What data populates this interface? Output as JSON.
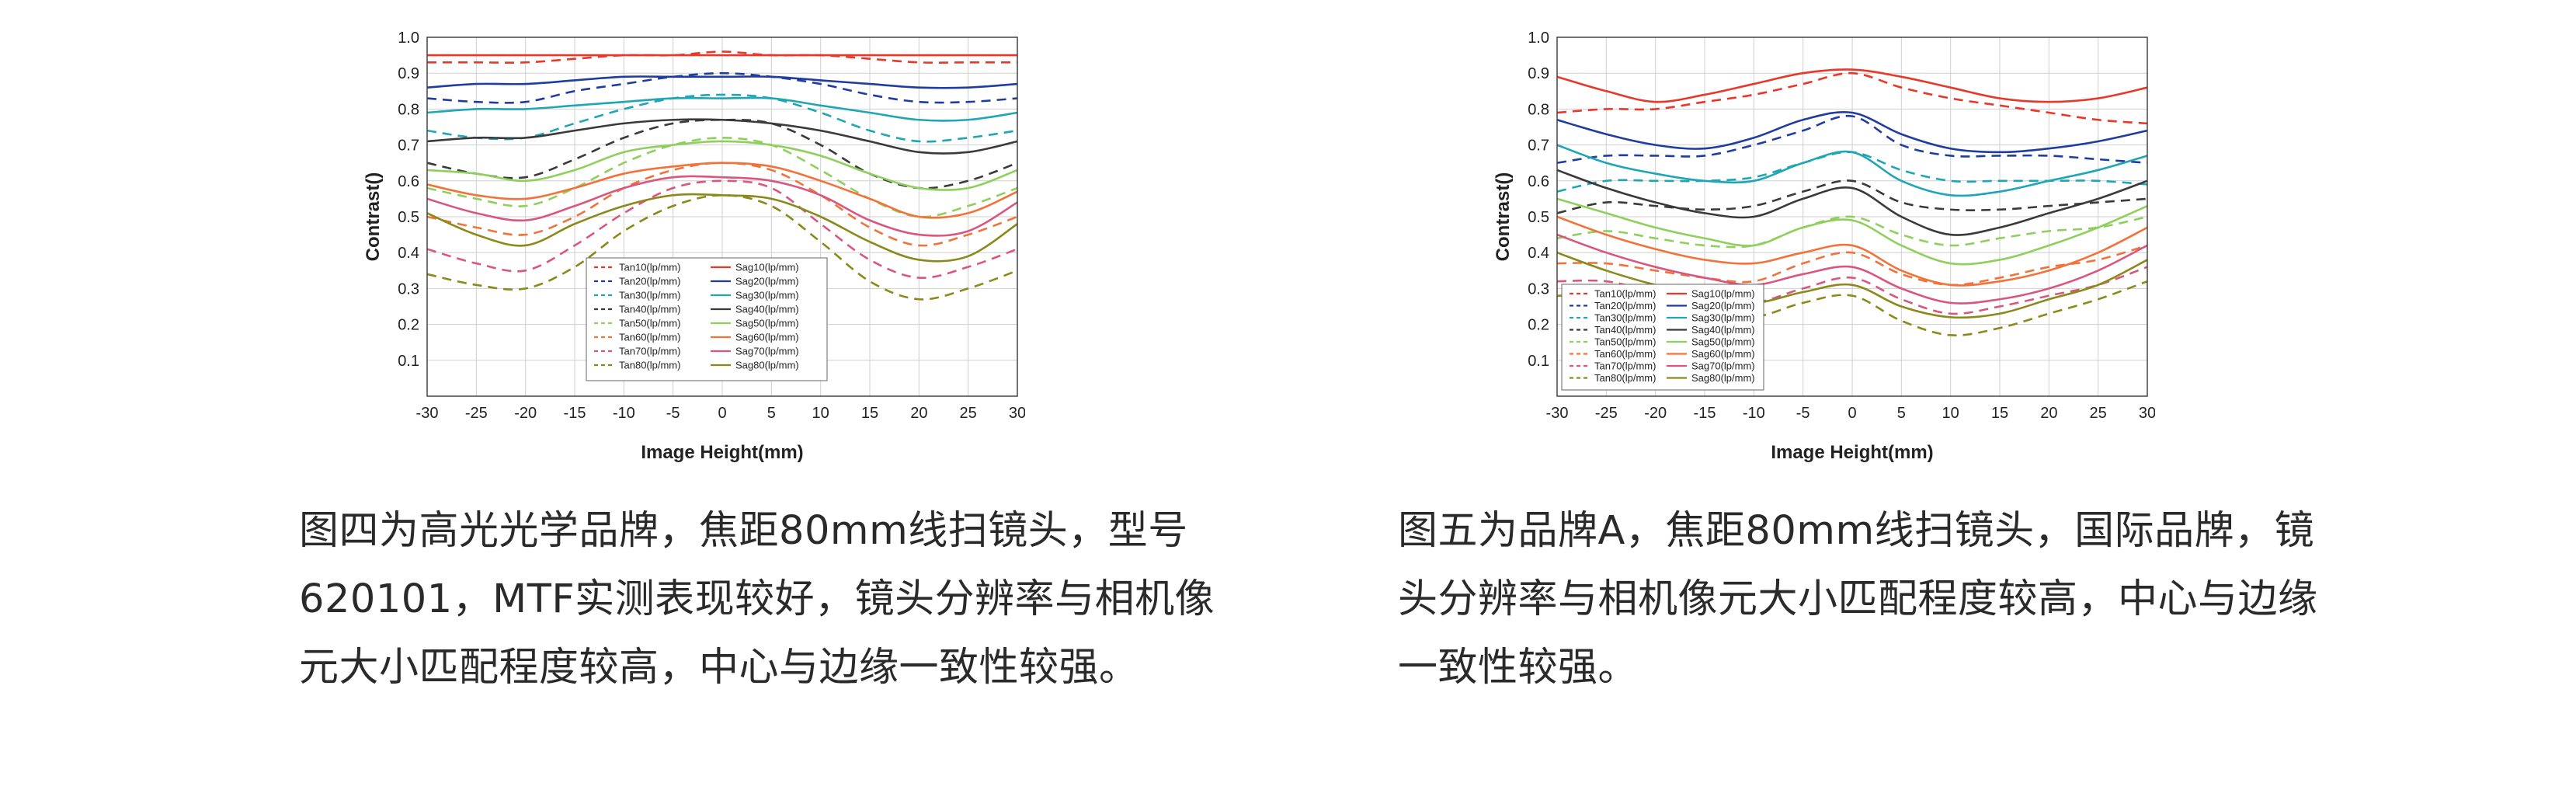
{
  "chart_data": [
    {
      "type": "line",
      "xlabel": "Image Height(mm)",
      "ylabel": "Contrast()",
      "xlim": [
        -30,
        30
      ],
      "ylim": [
        0,
        1
      ],
      "xticks": [
        -30,
        -25,
        -20,
        -15,
        -10,
        -5,
        0,
        5,
        10,
        15,
        20,
        25,
        30
      ],
      "yticks": [
        0.1,
        0.2,
        0.3,
        0.4,
        0.5,
        0.6,
        0.7,
        0.8,
        0.9,
        1.0
      ],
      "grid": true,
      "legend_position": "bottom-center",
      "x": [
        -30,
        -25,
        -20,
        -15,
        -10,
        -5,
        0,
        5,
        10,
        15,
        20,
        25,
        30
      ],
      "series": [
        {
          "name": "Tan10(lp/mm)",
          "color": "#e8382a",
          "dash": true,
          "values": [
            0.93,
            0.93,
            0.93,
            0.94,
            0.95,
            0.95,
            0.96,
            0.95,
            0.95,
            0.94,
            0.93,
            0.93,
            0.93
          ]
        },
        {
          "name": "Tan20(lp/mm)",
          "color": "#1f3d9e",
          "dash": true,
          "values": [
            0.83,
            0.82,
            0.82,
            0.85,
            0.87,
            0.89,
            0.9,
            0.89,
            0.87,
            0.84,
            0.82,
            0.82,
            0.83
          ]
        },
        {
          "name": "Tan30(lp/mm)",
          "color": "#1fa6b5",
          "dash": true,
          "values": [
            0.74,
            0.72,
            0.72,
            0.76,
            0.8,
            0.83,
            0.84,
            0.83,
            0.79,
            0.74,
            0.71,
            0.72,
            0.74
          ]
        },
        {
          "name": "Tan40(lp/mm)",
          "color": "#3a3a3a",
          "dash": true,
          "values": [
            0.65,
            0.62,
            0.61,
            0.66,
            0.72,
            0.76,
            0.77,
            0.76,
            0.7,
            0.62,
            0.58,
            0.6,
            0.65
          ]
        },
        {
          "name": "Tan50(lp/mm)",
          "color": "#8fcf5c",
          "dash": true,
          "values": [
            0.58,
            0.55,
            0.53,
            0.58,
            0.65,
            0.7,
            0.72,
            0.7,
            0.63,
            0.55,
            0.5,
            0.53,
            0.58
          ]
        },
        {
          "name": "Tan60(lp/mm)",
          "color": "#f0733a",
          "dash": true,
          "values": [
            0.5,
            0.47,
            0.45,
            0.5,
            0.58,
            0.63,
            0.65,
            0.63,
            0.56,
            0.47,
            0.42,
            0.45,
            0.5
          ]
        },
        {
          "name": "Tan70(lp/mm)",
          "color": "#d9577f",
          "dash": true,
          "values": [
            0.41,
            0.37,
            0.35,
            0.42,
            0.51,
            0.58,
            0.6,
            0.58,
            0.48,
            0.38,
            0.33,
            0.36,
            0.41
          ]
        },
        {
          "name": "Tan80(lp/mm)",
          "color": "#8a8a1a",
          "dash": true,
          "values": [
            0.34,
            0.31,
            0.3,
            0.36,
            0.46,
            0.53,
            0.56,
            0.53,
            0.43,
            0.32,
            0.27,
            0.3,
            0.35
          ]
        },
        {
          "name": "Sag10(lp/mm)",
          "color": "#e8382a",
          "dash": false,
          "values": [
            0.95,
            0.95,
            0.95,
            0.95,
            0.95,
            0.95,
            0.95,
            0.95,
            0.95,
            0.95,
            0.95,
            0.95,
            0.95
          ]
        },
        {
          "name": "Sag20(lp/mm)",
          "color": "#1f3d9e",
          "dash": false,
          "values": [
            0.86,
            0.87,
            0.87,
            0.88,
            0.89,
            0.89,
            0.89,
            0.89,
            0.88,
            0.87,
            0.86,
            0.86,
            0.87
          ]
        },
        {
          "name": "Sag30(lp/mm)",
          "color": "#1fa6b5",
          "dash": false,
          "values": [
            0.79,
            0.8,
            0.8,
            0.81,
            0.82,
            0.83,
            0.83,
            0.83,
            0.81,
            0.79,
            0.77,
            0.77,
            0.79
          ]
        },
        {
          "name": "Sag40(lp/mm)",
          "color": "#3a3a3a",
          "dash": false,
          "values": [
            0.71,
            0.72,
            0.72,
            0.74,
            0.76,
            0.77,
            0.77,
            0.76,
            0.74,
            0.71,
            0.68,
            0.68,
            0.71
          ]
        },
        {
          "name": "Sag50(lp/mm)",
          "color": "#8fcf5c",
          "dash": false,
          "values": [
            0.63,
            0.62,
            0.6,
            0.63,
            0.68,
            0.7,
            0.71,
            0.7,
            0.67,
            0.62,
            0.58,
            0.58,
            0.63
          ]
        },
        {
          "name": "Sag60(lp/mm)",
          "color": "#f0733a",
          "dash": false,
          "values": [
            0.59,
            0.56,
            0.55,
            0.58,
            0.62,
            0.64,
            0.65,
            0.64,
            0.6,
            0.55,
            0.5,
            0.51,
            0.57
          ]
        },
        {
          "name": "Sag70(lp/mm)",
          "color": "#d9577f",
          "dash": false,
          "values": [
            0.55,
            0.51,
            0.49,
            0.53,
            0.58,
            0.61,
            0.61,
            0.6,
            0.56,
            0.49,
            0.45,
            0.46,
            0.54
          ]
        },
        {
          "name": "Sag80(lp/mm)",
          "color": "#8a8a1a",
          "dash": false,
          "values": [
            0.51,
            0.45,
            0.42,
            0.48,
            0.53,
            0.56,
            0.56,
            0.55,
            0.5,
            0.43,
            0.38,
            0.39,
            0.48
          ]
        }
      ]
    },
    {
      "type": "line",
      "xlabel": "Image Height(mm)",
      "ylabel": "Contrast()",
      "xlim": [
        -30,
        30
      ],
      "ylim": [
        0,
        1
      ],
      "xticks": [
        -30,
        -25,
        -20,
        -15,
        -10,
        -5,
        0,
        5,
        10,
        15,
        20,
        25,
        30
      ],
      "yticks": [
        0.1,
        0.2,
        0.3,
        0.4,
        0.5,
        0.6,
        0.7,
        0.8,
        0.9,
        1.0
      ],
      "grid": true,
      "legend_position": "bottom-left",
      "x": [
        -30,
        -25,
        -20,
        -15,
        -10,
        -5,
        0,
        5,
        10,
        15,
        20,
        25,
        30
      ],
      "series": [
        {
          "name": "Tan10(lp/mm)",
          "color": "#e8382a",
          "dash": true,
          "values": [
            0.79,
            0.8,
            0.8,
            0.82,
            0.84,
            0.87,
            0.9,
            0.86,
            0.83,
            0.81,
            0.79,
            0.77,
            0.76
          ]
        },
        {
          "name": "Tan20(lp/mm)",
          "color": "#1f3d9e",
          "dash": true,
          "values": [
            0.65,
            0.67,
            0.67,
            0.67,
            0.7,
            0.74,
            0.78,
            0.7,
            0.67,
            0.67,
            0.67,
            0.66,
            0.65
          ]
        },
        {
          "name": "Tan30(lp/mm)",
          "color": "#1fa6b5",
          "dash": true,
          "values": [
            0.57,
            0.6,
            0.6,
            0.6,
            0.61,
            0.65,
            0.68,
            0.63,
            0.6,
            0.6,
            0.6,
            0.6,
            0.59
          ]
        },
        {
          "name": "Tan40(lp/mm)",
          "color": "#3a3a3a",
          "dash": true,
          "values": [
            0.51,
            0.54,
            0.53,
            0.52,
            0.53,
            0.57,
            0.6,
            0.54,
            0.52,
            0.52,
            0.53,
            0.54,
            0.55
          ]
        },
        {
          "name": "Tan50(lp/mm)",
          "color": "#8fcf5c",
          "dash": true,
          "values": [
            0.44,
            0.46,
            0.44,
            0.42,
            0.42,
            0.47,
            0.5,
            0.45,
            0.42,
            0.44,
            0.46,
            0.47,
            0.5
          ]
        },
        {
          "name": "Tan60(lp/mm)",
          "color": "#f0733a",
          "dash": true,
          "values": [
            0.37,
            0.37,
            0.35,
            0.33,
            0.32,
            0.37,
            0.4,
            0.34,
            0.31,
            0.33,
            0.36,
            0.38,
            0.42
          ]
        },
        {
          "name": "Tan70(lp/mm)",
          "color": "#d9577f",
          "dash": true,
          "values": [
            0.32,
            0.32,
            0.29,
            0.27,
            0.26,
            0.3,
            0.33,
            0.27,
            0.23,
            0.25,
            0.28,
            0.31,
            0.36
          ]
        },
        {
          "name": "Tan80(lp/mm)",
          "color": "#8a8a1a",
          "dash": true,
          "values": [
            0.28,
            0.28,
            0.25,
            0.23,
            0.22,
            0.26,
            0.28,
            0.21,
            0.17,
            0.19,
            0.23,
            0.27,
            0.32
          ]
        },
        {
          "name": "Sag10(lp/mm)",
          "color": "#e8382a",
          "dash": false,
          "values": [
            0.89,
            0.85,
            0.82,
            0.84,
            0.87,
            0.9,
            0.91,
            0.89,
            0.86,
            0.83,
            0.82,
            0.83,
            0.86
          ]
        },
        {
          "name": "Sag20(lp/mm)",
          "color": "#1f3d9e",
          "dash": false,
          "values": [
            0.77,
            0.73,
            0.7,
            0.69,
            0.72,
            0.77,
            0.79,
            0.73,
            0.69,
            0.68,
            0.69,
            0.71,
            0.74
          ]
        },
        {
          "name": "Sag30(lp/mm)",
          "color": "#1fa6b5",
          "dash": false,
          "values": [
            0.7,
            0.65,
            0.62,
            0.6,
            0.6,
            0.65,
            0.68,
            0.6,
            0.56,
            0.57,
            0.6,
            0.63,
            0.67
          ]
        },
        {
          "name": "Sag40(lp/mm)",
          "color": "#3a3a3a",
          "dash": false,
          "values": [
            0.63,
            0.58,
            0.54,
            0.51,
            0.5,
            0.55,
            0.58,
            0.5,
            0.45,
            0.47,
            0.51,
            0.55,
            0.6
          ]
        },
        {
          "name": "Sag50(lp/mm)",
          "color": "#8fcf5c",
          "dash": false,
          "values": [
            0.55,
            0.51,
            0.47,
            0.44,
            0.42,
            0.47,
            0.49,
            0.42,
            0.37,
            0.38,
            0.42,
            0.47,
            0.53
          ]
        },
        {
          "name": "Sag60(lp/mm)",
          "color": "#f0733a",
          "dash": false,
          "values": [
            0.5,
            0.45,
            0.41,
            0.38,
            0.37,
            0.4,
            0.42,
            0.35,
            0.31,
            0.32,
            0.35,
            0.4,
            0.47
          ]
        },
        {
          "name": "Sag70(lp/mm)",
          "color": "#d9577f",
          "dash": false,
          "values": [
            0.45,
            0.4,
            0.36,
            0.33,
            0.31,
            0.34,
            0.36,
            0.3,
            0.26,
            0.27,
            0.3,
            0.35,
            0.42
          ]
        },
        {
          "name": "Sag80(lp/mm)",
          "color": "#8a8a1a",
          "dash": false,
          "values": [
            0.4,
            0.35,
            0.31,
            0.28,
            0.26,
            0.29,
            0.31,
            0.25,
            0.22,
            0.23,
            0.27,
            0.31,
            0.38
          ]
        }
      ]
    }
  ],
  "captions": {
    "left": "图四为高光光学品牌，焦距80mm线扫镜头，型号620101，MTF实测表现较好，镜头分辨率与相机像元大小匹配程度较高，中心与边缘一致性较强。",
    "right": "图五为品牌A，焦距80mm线扫镜头，国际品牌，镜头分辨率与相机像元大小匹配程度较高，中心与边缘一致性较强。"
  }
}
